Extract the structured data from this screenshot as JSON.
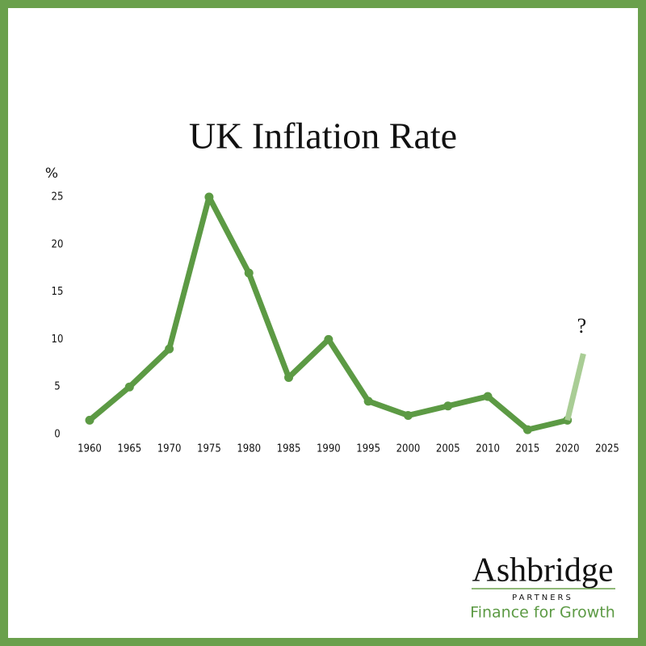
{
  "chart_data": {
    "type": "line",
    "title": "UK Inflation Rate",
    "y_label": "%",
    "x": [
      1960,
      1965,
      1970,
      1975,
      1980,
      1985,
      1990,
      1995,
      2000,
      2005,
      2010,
      2015,
      2020
    ],
    "series": [
      {
        "color": "#5c9a44",
        "values": [
          1.5,
          5,
          9,
          25,
          17,
          6,
          10,
          3.5,
          2,
          3,
          4,
          0.5,
          1.5
        ]
      },
      {
        "color": "#a9cd95",
        "x": [
          2020,
          2022
        ],
        "values": [
          1.5,
          8.5
        ]
      }
    ],
    "annotation": "?",
    "xlim": [
      1960,
      2025
    ],
    "xticks": [
      1960,
      1965,
      1970,
      1975,
      1980,
      1985,
      1990,
      1995,
      2000,
      2005,
      2010,
      2015,
      2020,
      2025
    ],
    "ylim": [
      0,
      25
    ],
    "yticks": [
      0,
      5,
      10,
      15,
      20,
      25
    ],
    "grid": false
  },
  "logo": {
    "name": "Ashbridge",
    "sub": "PARTNERS",
    "tagline": "Finance for Growth"
  }
}
